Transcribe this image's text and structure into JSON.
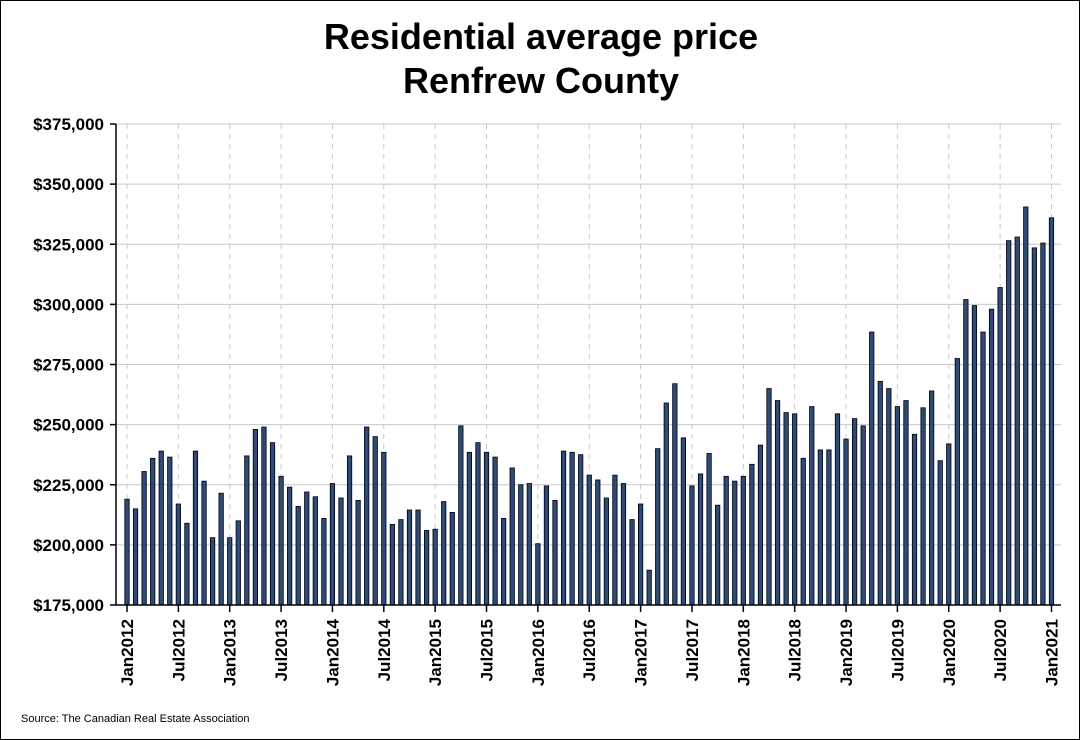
{
  "chart_data": {
    "type": "bar",
    "title": [
      "Residential average price",
      "Renfrew County"
    ],
    "source": "Source: The Canadian Real Estate Association",
    "xlabel": "",
    "ylabel": "",
    "ylim": [
      175000,
      375000
    ],
    "y_ticks": [
      175000,
      200000,
      225000,
      250000,
      275000,
      300000,
      325000,
      350000,
      375000
    ],
    "y_tick_labels": [
      "$175,000",
      "$200,000",
      "$225,000",
      "$250,000",
      "$275,000",
      "$300,000",
      "$325,000",
      "$350,000",
      "$375,000"
    ],
    "x_tick_labels": [
      "Jan2012",
      "Jul2012",
      "Jan2013",
      "Jul2013",
      "Jan2014",
      "Jul2014",
      "Jan2015",
      "Jul2015",
      "Jan2016",
      "Jul2016",
      "Jan2017",
      "Jul2017",
      "Jan2018",
      "Jul2018",
      "Jan2019",
      "Jul2019",
      "Jan2020",
      "Jul2020",
      "Jan2021"
    ],
    "grid": true,
    "bar_color": "#2c4a7c",
    "bar_edge_color": "#000000",
    "categories": [
      "Jan2012",
      "Feb2012",
      "Mar2012",
      "Apr2012",
      "May2012",
      "Jun2012",
      "Jul2012",
      "Aug2012",
      "Sep2012",
      "Oct2012",
      "Nov2012",
      "Dec2012",
      "Jan2013",
      "Feb2013",
      "Mar2013",
      "Apr2013",
      "May2013",
      "Jun2013",
      "Jul2013",
      "Aug2013",
      "Sep2013",
      "Oct2013",
      "Nov2013",
      "Dec2013",
      "Jan2014",
      "Feb2014",
      "Mar2014",
      "Apr2014",
      "May2014",
      "Jun2014",
      "Jul2014",
      "Aug2014",
      "Sep2014",
      "Oct2014",
      "Nov2014",
      "Dec2014",
      "Jan2015",
      "Feb2015",
      "Mar2015",
      "Apr2015",
      "May2015",
      "Jun2015",
      "Jul2015",
      "Aug2015",
      "Sep2015",
      "Oct2015",
      "Nov2015",
      "Dec2015",
      "Jan2016",
      "Feb2016",
      "Mar2016",
      "Apr2016",
      "May2016",
      "Jun2016",
      "Jul2016",
      "Aug2016",
      "Sep2016",
      "Oct2016",
      "Nov2016",
      "Dec2016",
      "Jan2017",
      "Feb2017",
      "Mar2017",
      "Apr2017",
      "May2017",
      "Jun2017",
      "Jul2017",
      "Aug2017",
      "Sep2017",
      "Oct2017",
      "Nov2017",
      "Dec2017",
      "Jan2018",
      "Feb2018",
      "Mar2018",
      "Apr2018",
      "May2018",
      "Jun2018",
      "Jul2018",
      "Aug2018",
      "Sep2018",
      "Oct2018",
      "Nov2018",
      "Dec2018",
      "Jan2019",
      "Feb2019",
      "Mar2019",
      "Apr2019",
      "May2019",
      "Jun2019",
      "Jul2019",
      "Aug2019",
      "Sep2019",
      "Oct2019",
      "Nov2019",
      "Dec2019",
      "Jan2020",
      "Feb2020",
      "Mar2020",
      "Apr2020",
      "May2020",
      "Jun2020",
      "Jul2020",
      "Aug2020",
      "Sep2020",
      "Oct2020",
      "Nov2020",
      "Dec2020",
      "Jan2021"
    ],
    "values": [
      219000,
      215000,
      230500,
      236000,
      239000,
      236500,
      217000,
      209000,
      239000,
      226500,
      203000,
      221500,
      203000,
      210000,
      237000,
      248000,
      249000,
      242500,
      228500,
      224000,
      216000,
      222000,
      220000,
      211000,
      225500,
      219500,
      237000,
      218500,
      249000,
      245000,
      238500,
      208500,
      210500,
      214500,
      214500,
      206000,
      206500,
      218000,
      213500,
      249500,
      238500,
      242500,
      238500,
      236500,
      211000,
      232000,
      225000,
      225500,
      200500,
      224500,
      218500,
      239000,
      238500,
      237500,
      229000,
      227000,
      219500,
      229000,
      225500,
      210500,
      217000,
      189500,
      240000,
      259000,
      267000,
      244500,
      224500,
      229500,
      238000,
      216500,
      228500,
      226500,
      228500,
      233500,
      241500,
      265000,
      260000,
      255000,
      254500,
      236000,
      257500,
      239500,
      239500,
      254500,
      244000,
      252500,
      249500,
      288500,
      268000,
      265000,
      257500,
      260000,
      246000,
      257000,
      264000,
      235000,
      242000,
      277500,
      302000,
      299500,
      288500,
      298000,
      307000,
      326500,
      328000,
      340500,
      323500,
      325500,
      336000
    ]
  }
}
